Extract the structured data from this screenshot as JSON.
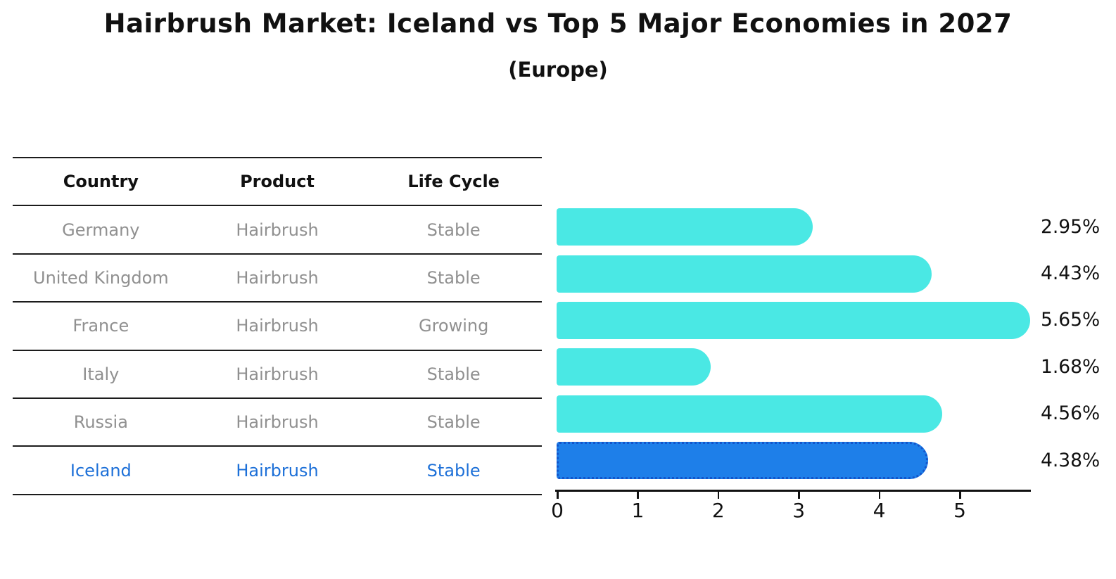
{
  "title": "Hairbrush Market: Iceland vs Top 5 Major Economies in 2027",
  "subtitle": "(Europe)",
  "table": {
    "headers": [
      "Country",
      "Product",
      "Life Cycle"
    ],
    "rows": [
      {
        "country": "Germany",
        "product": "Hairbrush",
        "life_cycle": "Stable",
        "highlighted": false
      },
      {
        "country": "United Kingdom",
        "product": "Hairbrush",
        "life_cycle": "Stable",
        "highlighted": false
      },
      {
        "country": "France",
        "product": "Hairbrush",
        "life_cycle": "Growing",
        "highlighted": false
      },
      {
        "country": "Italy",
        "product": "Hairbrush",
        "life_cycle": "Stable",
        "highlighted": false
      },
      {
        "country": "Russia",
        "product": "Hairbrush",
        "life_cycle": "Stable",
        "highlighted": false
      },
      {
        "country": "Iceland",
        "product": "Hairbrush",
        "life_cycle": "Stable",
        "highlighted": true
      }
    ]
  },
  "chart_data": {
    "type": "bar",
    "orientation": "horizontal",
    "categories": [
      "Germany",
      "United Kingdom",
      "France",
      "Italy",
      "Russia",
      "Iceland"
    ],
    "values": [
      2.95,
      4.43,
      5.65,
      1.68,
      4.56,
      4.38
    ],
    "labels": [
      "2.95%",
      "4.43%",
      "5.65%",
      "1.68%",
      "4.56%",
      "4.38%"
    ],
    "x_ticks": [
      "0",
      "1",
      "2",
      "3",
      "4",
      "5"
    ],
    "xlim": [
      0,
      5.9
    ],
    "grid": false,
    "legend": "none",
    "highlight_index": 5,
    "bar_color": "#4AE8E4",
    "highlight_bar_color": "#1E7FE9",
    "highlight_border_color": "#1355CB",
    "highlight_text_color": "#1D70D8"
  }
}
